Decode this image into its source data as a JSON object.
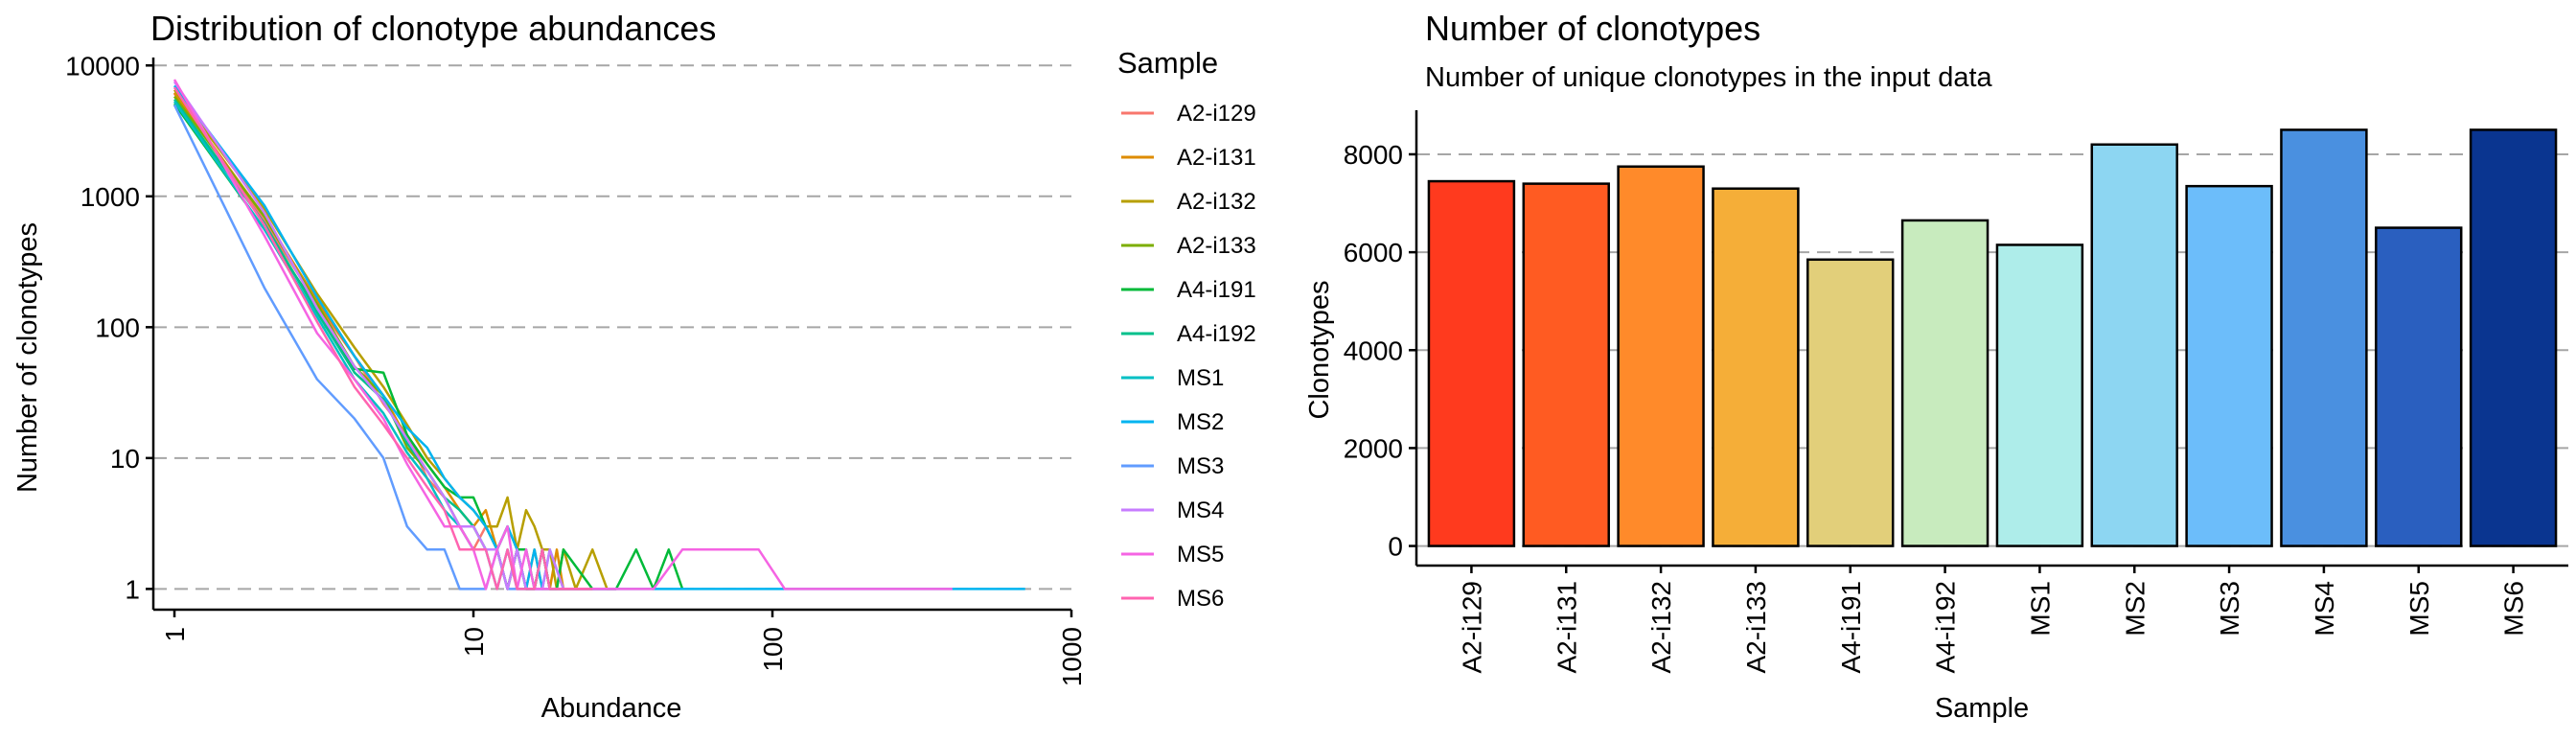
{
  "chart_data": [
    {
      "type": "line",
      "title": "Distribution of clonotype abundances",
      "xlabel": "Abundance",
      "ylabel": "Number of clonotypes",
      "xscale": "log",
      "yscale": "log",
      "xlim": [
        0.85,
        1000
      ],
      "ylim": [
        0.85,
        11500
      ],
      "x_ticks": [
        1,
        10,
        100,
        1000
      ],
      "x_tick_labels": [
        "1",
        "10",
        "100",
        "1000"
      ],
      "y_ticks": [
        1,
        10,
        100,
        1000,
        10000
      ],
      "y_tick_labels": [
        "1",
        "10",
        "100",
        "1000",
        "10000"
      ],
      "grid": "horizontal dashed",
      "legend": {
        "title": "Sample",
        "position": "right"
      },
      "series": [
        {
          "name": "A2-i129",
          "color": "#F8766D",
          "x": [
            1,
            2,
            3,
            4,
            5,
            6,
            7,
            8,
            9,
            10,
            11,
            12,
            13,
            14,
            15,
            16,
            17,
            18,
            19,
            20
          ],
          "y": [
            6100,
            650,
            150,
            60,
            26,
            15,
            7,
            5,
            3,
            2,
            3,
            2,
            1,
            2,
            1,
            1,
            2,
            1,
            1,
            1
          ]
        },
        {
          "name": "A2-i131",
          "color": "#DE8C00",
          "x": [
            1,
            2,
            3,
            4,
            5,
            6,
            7,
            8,
            9,
            10,
            11,
            12,
            13,
            14,
            15,
            16,
            17,
            18,
            19,
            20,
            22,
            25
          ],
          "y": [
            6200,
            700,
            160,
            60,
            30,
            14,
            9,
            6,
            4,
            3,
            4,
            2,
            1,
            2,
            1,
            2,
            1,
            1,
            2,
            1,
            1,
            1
          ]
        },
        {
          "name": "A2-i132",
          "color": "#B79F00",
          "x": [
            1,
            2,
            3,
            4,
            5,
            6,
            7,
            8,
            9,
            10,
            11,
            12,
            13,
            14,
            15,
            16,
            17,
            18,
            19,
            20,
            22,
            25,
            28,
            30
          ],
          "y": [
            6500,
            800,
            180,
            70,
            35,
            18,
            10,
            7,
            5,
            4,
            3,
            3,
            5,
            2,
            4,
            3,
            2,
            2,
            1,
            2,
            1,
            2,
            1,
            1
          ]
        },
        {
          "name": "A2-i133",
          "color": "#7CAE00",
          "x": [
            1,
            2,
            3,
            4,
            5,
            6,
            7,
            8,
            9,
            10,
            11,
            12,
            13,
            14,
            15,
            16,
            17,
            18,
            19,
            20,
            22,
            25,
            30
          ],
          "y": [
            5800,
            700,
            150,
            50,
            30,
            12,
            8,
            5,
            3,
            3,
            2,
            2,
            1,
            2,
            1,
            1,
            2,
            1,
            1,
            1,
            1,
            1,
            1
          ]
        },
        {
          "name": "A4-i191",
          "color": "#00BA38",
          "x": [
            1,
            2,
            3,
            4,
            5,
            6,
            7,
            8,
            9,
            10,
            11,
            12,
            13,
            14,
            15,
            16,
            17,
            18,
            19,
            20,
            25,
            30,
            35,
            40,
            45,
            50
          ],
          "y": [
            5100,
            560,
            140,
            48,
            45,
            15,
            9,
            6,
            5,
            5,
            3,
            2,
            3,
            2,
            2,
            1,
            2,
            1,
            1,
            2,
            1,
            1,
            2,
            1,
            2,
            1
          ]
        },
        {
          "name": "A4-i192",
          "color": "#00C08B",
          "x": [
            1,
            2,
            3,
            4,
            5,
            6,
            7,
            8,
            9,
            10,
            11,
            12,
            13,
            14,
            15,
            16,
            17,
            18,
            20,
            25
          ],
          "y": [
            5500,
            620,
            130,
            45,
            28,
            13,
            8,
            5,
            4,
            3,
            2,
            2,
            1,
            2,
            1,
            1,
            2,
            1,
            1,
            1
          ]
        },
        {
          "name": "MS1",
          "color": "#00BFC4",
          "x": [
            1,
            2,
            3,
            4,
            5,
            6,
            7,
            8,
            9,
            10,
            11,
            12,
            13,
            14,
            15,
            16,
            18,
            20
          ],
          "y": [
            5300,
            560,
            120,
            40,
            22,
            11,
            7,
            4,
            3,
            2,
            2,
            1,
            2,
            1,
            1,
            1,
            1,
            1
          ]
        },
        {
          "name": "MS2",
          "color": "#00B4F0",
          "x": [
            1,
            2,
            3,
            4,
            5,
            6,
            7,
            8,
            9,
            10,
            11,
            12,
            13,
            14,
            15,
            16,
            17,
            18,
            20,
            25,
            30,
            40,
            60,
            100,
            150,
            300,
            700
          ],
          "y": [
            7000,
            850,
            170,
            60,
            30,
            17,
            12,
            7,
            5,
            4,
            3,
            2,
            3,
            2,
            1,
            2,
            1,
            2,
            1,
            1,
            1,
            1,
            1,
            1,
            1,
            1,
            1
          ]
        },
        {
          "name": "MS3",
          "color": "#619CFF",
          "x": [
            1,
            2,
            3,
            4,
            5,
            6,
            7,
            8,
            9,
            10,
            11,
            12,
            13,
            14,
            15,
            16,
            17,
            18,
            20,
            25,
            30
          ],
          "y": [
            5000,
            200,
            40,
            20,
            10,
            3,
            2,
            2,
            1,
            1,
            1,
            2,
            1,
            1,
            1,
            1,
            1,
            1,
            1,
            1,
            1
          ]
        },
        {
          "name": "MS4",
          "color": "#C77CFF",
          "x": [
            1,
            2,
            3,
            4,
            5,
            6,
            7,
            8,
            9,
            10,
            11,
            12,
            13,
            14,
            15,
            16,
            17,
            18,
            20,
            25,
            30
          ],
          "y": [
            7500,
            750,
            140,
            50,
            27,
            14,
            8,
            5,
            3,
            3,
            2,
            2,
            1,
            2,
            1,
            1,
            1,
            2,
            1,
            1,
            1
          ]
        },
        {
          "name": "MS5",
          "color": "#F564E3",
          "x": [
            1,
            2,
            3,
            4,
            5,
            6,
            7,
            8,
            9,
            10,
            11,
            12,
            13,
            14,
            15,
            16,
            17,
            18,
            20,
            25,
            30,
            40,
            50,
            60,
            80,
            90,
            110,
            200,
            400
          ],
          "y": [
            7800,
            500,
            90,
            40,
            20,
            9,
            5,
            3,
            3,
            2,
            1,
            2,
            3,
            1,
            2,
            1,
            1,
            1,
            1,
            1,
            1,
            1,
            2,
            2,
            2,
            2,
            1,
            1,
            1
          ]
        },
        {
          "name": "MS6",
          "color": "#FF64B0",
          "x": [
            1,
            2,
            3,
            4,
            5,
            6,
            7,
            8,
            9,
            10,
            11,
            12,
            13,
            14,
            15,
            16,
            17,
            18,
            20,
            25
          ],
          "y": [
            6800,
            600,
            110,
            35,
            18,
            10,
            6,
            4,
            2,
            2,
            2,
            1,
            2,
            1,
            1,
            1,
            2,
            1,
            1,
            1
          ]
        }
      ]
    },
    {
      "type": "bar",
      "title": "Number of clonotypes",
      "subtitle": "Number of unique clonotypes in the input data",
      "xlabel": "Sample",
      "ylabel": "Clonotypes",
      "ylim": [
        -400,
        8900
      ],
      "y_ticks": [
        0,
        2000,
        4000,
        6000,
        8000
      ],
      "y_tick_labels": [
        "0",
        "2000",
        "4000",
        "6000",
        "8000"
      ],
      "grid": "horizontal dashed",
      "categories": [
        "A2-i129",
        "A2-i131",
        "A2-i132",
        "A2-i133",
        "A4-i191",
        "A4-i192",
        "MS1",
        "MS2",
        "MS3",
        "MS4",
        "MS5",
        "MS6"
      ],
      "values": [
        7450,
        7400,
        7750,
        7300,
        5850,
        6650,
        6150,
        8200,
        7350,
        8500,
        6500,
        8500
      ],
      "colors": [
        "#FF3A1E",
        "#FF5B22",
        "#FF8A2A",
        "#F5AE38",
        "#E2CF7A",
        "#C8EBBE",
        "#AEEDEA",
        "#8DD6F2",
        "#6CBDFA",
        "#4A90E0",
        "#2A5FBF",
        "#0A3590"
      ]
    }
  ]
}
